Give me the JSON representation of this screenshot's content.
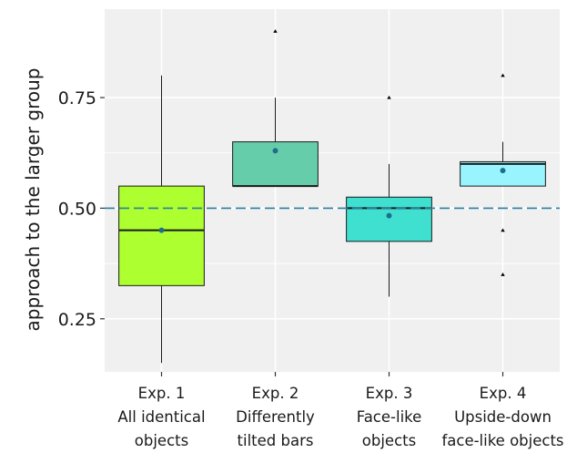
{
  "chart_data": {
    "type": "boxplot",
    "title": "",
    "xlabel": "",
    "ylabel": "approach to the larger group",
    "ylim": [
      0.13,
      0.95
    ],
    "yticks": [
      0.25,
      0.5,
      0.75
    ],
    "ytick_labels": [
      "0.25",
      "0.50",
      "0.75"
    ],
    "reference_line": {
      "y": 0.5,
      "style": "dashed",
      "color": "#2a7fa0"
    },
    "grid": true,
    "legend": "none",
    "categories": [
      {
        "lines": [
          "Exp. 1",
          "All identical",
          "objects"
        ]
      },
      {
        "lines": [
          "Exp. 2",
          "Differently",
          "tilted bars"
        ]
      },
      {
        "lines": [
          "Exp. 3",
          "Face-like",
          "objects"
        ]
      },
      {
        "lines": [
          "Exp. 4",
          "Upside-down",
          "face-like objects"
        ]
      }
    ],
    "boxes": [
      {
        "whisker_low": 0.15,
        "q1": 0.325,
        "median": 0.45,
        "q3": 0.55,
        "whisker_high": 0.8,
        "mean": 0.45,
        "outliers": [],
        "color": "#adff2f"
      },
      {
        "whisker_low": 0.55,
        "q1": 0.55,
        "median": 0.55,
        "q3": 0.65,
        "whisker_high": 0.75,
        "mean": 0.63,
        "outliers": [
          0.9
        ],
        "color": "#66cdaa"
      },
      {
        "whisker_low": 0.3,
        "q1": 0.425,
        "median": 0.5,
        "q3": 0.525,
        "whisker_high": 0.6,
        "mean": 0.483,
        "outliers": [
          0.75
        ],
        "color": "#40e0d0"
      },
      {
        "whisker_low": 0.55,
        "q1": 0.55,
        "median": 0.6,
        "q3": 0.605,
        "whisker_high": 0.65,
        "mean": 0.585,
        "outliers": [
          0.8,
          0.45,
          0.35
        ],
        "color": "#98f5ff"
      }
    ],
    "colors": {
      "panel": "#f0f0f0",
      "grid": "#ffffff",
      "mean_point": "#1f6f8b",
      "outline": "#1a1a1a"
    }
  }
}
